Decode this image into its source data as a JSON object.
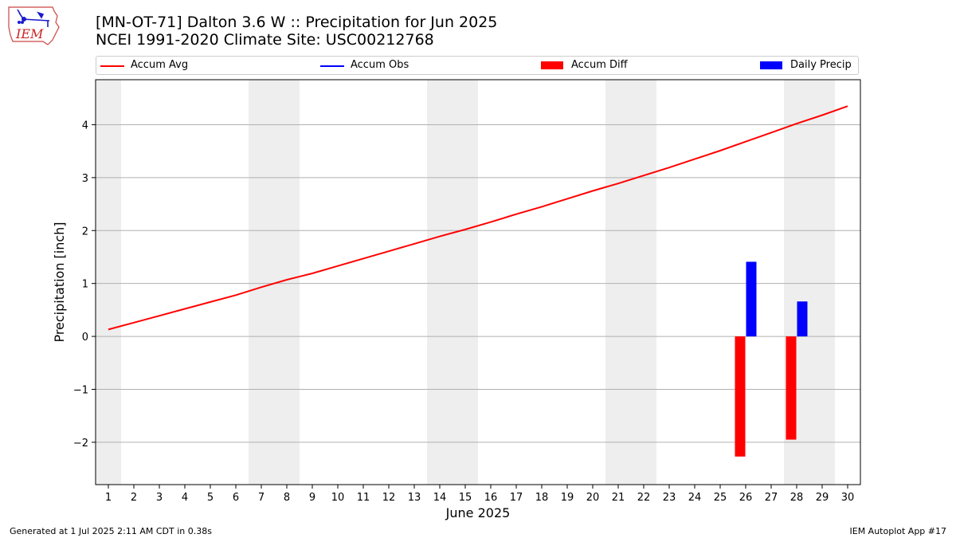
{
  "logo_text": "IEM",
  "title_line1": "[MN-OT-71] Dalton 3.6 W :: Precipitation for Jun 2025",
  "title_line2": "NCEI 1991-2020 Climate Site: USC00212768",
  "legend": [
    {
      "label": "Accum Avg",
      "kind": "line",
      "color": "#ff0000"
    },
    {
      "label": "Accum Obs",
      "kind": "line",
      "color": "#0000ff"
    },
    {
      "label": "Accum Diff",
      "kind": "patch",
      "color": "#ff0000"
    },
    {
      "label": "Daily Precip",
      "kind": "patch",
      "color": "#0000ff"
    }
  ],
  "footer_left": "Generated at 1 Jul 2025 2:11 AM CDT in 0.38s",
  "footer_right": "IEM Autoplot App #17",
  "chart_data": {
    "type": "bar",
    "xlabel": "June 2025",
    "ylabel": "Precipitation [inch]",
    "xlim": [
      0.5,
      30.5
    ],
    "ylim": [
      -2.8,
      4.85
    ],
    "yticks": [
      -2,
      -1,
      0,
      1,
      2,
      3,
      4
    ],
    "ytick_labels": [
      "−2",
      "−1",
      "0",
      "1",
      "2",
      "3",
      "4"
    ],
    "xticks": [
      1,
      2,
      3,
      4,
      5,
      6,
      7,
      8,
      9,
      10,
      11,
      12,
      13,
      14,
      15,
      16,
      17,
      18,
      19,
      20,
      21,
      22,
      23,
      24,
      25,
      26,
      27,
      28,
      29,
      30
    ],
    "xtick_labels": [
      "1",
      "2",
      "3",
      "4",
      "5",
      "6",
      "7",
      "8",
      "9",
      "10",
      "11",
      "12",
      "13",
      "14",
      "15",
      "16",
      "17",
      "18",
      "19",
      "20",
      "21",
      "22",
      "23",
      "24",
      "25",
      "26",
      "27",
      "28",
      "29",
      "30"
    ],
    "grid": "horizontal",
    "weekend_shading": [
      [
        0.5,
        1.5
      ],
      [
        6.5,
        8.5
      ],
      [
        13.5,
        15.5
      ],
      [
        20.5,
        22.5
      ],
      [
        27.5,
        29.5
      ]
    ],
    "weekend_color": "#eeeeee",
    "series": [
      {
        "name": "Accum Avg",
        "type": "line",
        "color": "#ff0000",
        "x": [
          1,
          2,
          3,
          4,
          5,
          6,
          7,
          8,
          9,
          10,
          11,
          12,
          13,
          14,
          15,
          16,
          17,
          18,
          19,
          20,
          21,
          22,
          23,
          24,
          25,
          26,
          27,
          28,
          29,
          30
        ],
        "values": [
          0.13,
          0.26,
          0.39,
          0.52,
          0.65,
          0.78,
          0.93,
          1.07,
          1.19,
          1.33,
          1.47,
          1.61,
          1.75,
          1.89,
          2.02,
          2.16,
          2.31,
          2.45,
          2.6,
          2.75,
          2.89,
          3.04,
          3.19,
          3.35,
          3.51,
          3.68,
          3.85,
          4.02,
          4.18,
          4.35
        ]
      },
      {
        "name": "Accum Diff",
        "type": "bar",
        "color": "#ff0000",
        "x": [
          26,
          28
        ],
        "values": [
          -2.27,
          -1.95
        ]
      },
      {
        "name": "Daily Precip",
        "type": "bar",
        "color": "#0000ff",
        "x": [
          26,
          28
        ],
        "values": [
          1.41,
          0.66
        ]
      }
    ]
  }
}
